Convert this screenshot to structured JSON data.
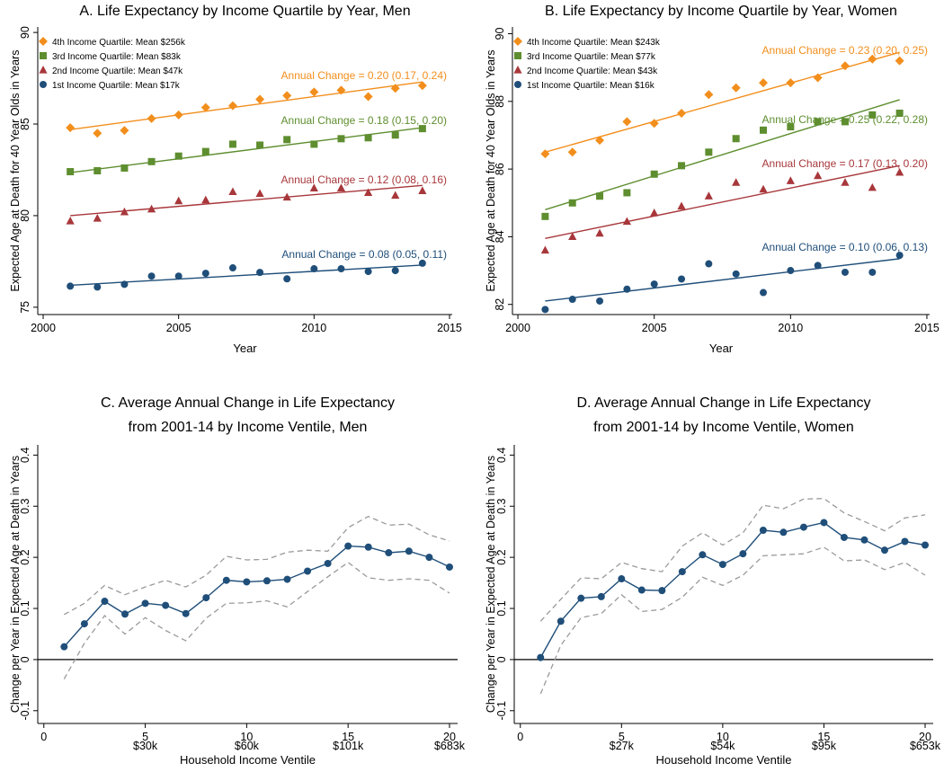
{
  "colors": {
    "q4": "#F28E1C",
    "q3": "#5E8E2F",
    "q2": "#A8373B",
    "q1": "#1F4E79",
    "ci": "#9a9a9a",
    "axis": "#000000"
  },
  "chart_data": [
    {
      "id": "A",
      "type": "scatter",
      "title": "A. Life Expectancy by Income Quartile by Year, Men",
      "xlabel": "Year",
      "ylabel": "Expected Age at Death for 40 Year Olds in Years",
      "xlim": [
        1999.8,
        2015.1
      ],
      "ylim": [
        74.6,
        90.3
      ],
      "xticks": [
        2000,
        2005,
        2010,
        2015
      ],
      "xtick_labels": [
        "2000",
        "2005",
        "2010",
        "2015"
      ],
      "yticks": [
        75,
        80,
        85,
        90
      ],
      "ytick_labels": [
        "75",
        "80",
        "85",
        "90"
      ],
      "legend_position": "top-left",
      "x": [
        2001,
        2002,
        2003,
        2004,
        2005,
        2006,
        2007,
        2008,
        2009,
        2010,
        2011,
        2012,
        2013,
        2014
      ],
      "series": [
        {
          "key": "q4",
          "marker": "diamond",
          "name": "4th Income Quartile: Mean $256k",
          "values": [
            84.8,
            84.5,
            84.65,
            85.3,
            85.5,
            85.9,
            86.0,
            86.35,
            86.55,
            86.75,
            86.85,
            86.5,
            86.95,
            87.1
          ],
          "fit": [
            84.7,
            87.3
          ],
          "annotation": "Annual Change = 0.20 (0.17, 0.24)"
        },
        {
          "key": "q3",
          "marker": "square",
          "name": "3rd Income Quartile: Mean $83k",
          "values": [
            82.4,
            82.45,
            82.6,
            82.95,
            83.25,
            83.5,
            83.9,
            83.85,
            84.15,
            83.9,
            84.2,
            84.25,
            84.4,
            84.75
          ],
          "fit": [
            82.35,
            84.8
          ],
          "annotation": "Annual Change = 0.18 (0.15, 0.20)"
        },
        {
          "key": "q2",
          "marker": "triangle",
          "name": "2nd Income Quartile: Mean $47k",
          "values": [
            79.7,
            79.85,
            80.2,
            80.35,
            80.8,
            80.85,
            81.3,
            81.2,
            81.0,
            81.5,
            81.5,
            81.25,
            81.1,
            81.35
          ],
          "fit": [
            80.0,
            81.65
          ],
          "annotation": "Annual Change = 0.12 (0.08, 0.16)"
        },
        {
          "key": "q1",
          "marker": "circle",
          "name": "1st Income Quartile: Mean $17k",
          "values": [
            76.15,
            76.1,
            76.25,
            76.7,
            76.7,
            76.85,
            77.15,
            76.9,
            76.55,
            77.1,
            77.1,
            76.95,
            77.0,
            77.4
          ],
          "fit": [
            76.2,
            77.3
          ],
          "annotation": "Annual Change = 0.08 (0.05, 0.11)"
        }
      ]
    },
    {
      "id": "B",
      "type": "scatter",
      "title": "B. Life Expectancy by Income Quartile by Year, Women",
      "xlabel": "Year",
      "ylabel": "Expected Age at Death for 40 Year Olds in Years",
      "xlim": [
        1999.8,
        2015.1
      ],
      "ylim": [
        81.7,
        90.2
      ],
      "xticks": [
        2000,
        2005,
        2010,
        2015
      ],
      "xtick_labels": [
        "2000",
        "2005",
        "2010",
        "2015"
      ],
      "yticks": [
        82,
        84,
        86,
        88,
        90
      ],
      "ytick_labels": [
        "82",
        "84",
        "86",
        "88",
        "90"
      ],
      "legend_position": "top-left",
      "x": [
        2001,
        2002,
        2003,
        2004,
        2005,
        2006,
        2007,
        2008,
        2009,
        2010,
        2011,
        2012,
        2013,
        2014
      ],
      "series": [
        {
          "key": "q4",
          "marker": "diamond",
          "name": "4th Income Quartile: Mean $243k",
          "values": [
            86.45,
            86.5,
            86.85,
            87.4,
            87.35,
            87.65,
            88.2,
            88.4,
            88.55,
            88.55,
            88.7,
            89.05,
            89.25,
            89.2
          ],
          "fit": [
            86.5,
            89.45
          ],
          "annotation": "Annual Change = 0.23 (0.20, 0.25)"
        },
        {
          "key": "q3",
          "marker": "square",
          "name": "3rd Income Quartile: Mean $77k",
          "values": [
            84.6,
            85.0,
            85.2,
            85.3,
            85.85,
            86.1,
            86.5,
            86.9,
            87.15,
            87.25,
            87.4,
            87.4,
            87.6,
            87.65
          ],
          "fit": [
            84.8,
            88.05
          ],
          "annotation": "Annual Change = 0.25 (0.22, 0.28)"
        },
        {
          "key": "q2",
          "marker": "triangle",
          "name": "2nd Income Quartile: Mean $43k",
          "values": [
            83.6,
            84.0,
            84.1,
            84.45,
            84.7,
            84.9,
            85.2,
            85.6,
            85.4,
            85.65,
            85.8,
            85.6,
            85.45,
            85.9
          ],
          "fit": [
            83.95,
            86.1
          ],
          "annotation": "Annual Change = 0.17 (0.13, 0.20)"
        },
        {
          "key": "q1",
          "marker": "circle",
          "name": "1st Income Quartile: Mean $16k",
          "values": [
            81.85,
            82.15,
            82.1,
            82.45,
            82.6,
            82.75,
            83.2,
            82.9,
            82.35,
            83.0,
            83.15,
            82.95,
            82.95,
            83.45
          ],
          "fit": [
            82.1,
            83.35
          ],
          "annotation": "Annual Change = 0.10 (0.06, 0.13)"
        }
      ]
    },
    {
      "id": "C",
      "type": "line",
      "title_lines": [
        "C. Average Annual Change in Life Expectancy",
        "from 2001-14 by Income Ventile, Men"
      ],
      "xlabel": "Household Income Ventile",
      "ylabel": "Change per Year in Expected Age at Death in Years",
      "xlim": [
        -0.3,
        20.4
      ],
      "ylim": [
        -0.125,
        0.42
      ],
      "xticks": [
        0,
        5,
        10,
        15,
        20
      ],
      "xtick_labels": [
        "0",
        "5",
        "10",
        "15",
        "20"
      ],
      "xticks_secondary": [
        5,
        10,
        15,
        20
      ],
      "xtick_secondary_labels": [
        "$30k",
        "$60k",
        "$101k",
        "$683k"
      ],
      "yticks": [
        -0.1,
        0,
        0.1,
        0.2,
        0.3,
        0.4
      ],
      "ytick_labels": [
        "-0.1",
        "0",
        "0.1",
        "0.2",
        "0.3",
        "0.4"
      ],
      "zero_line": 0,
      "x": [
        1,
        2,
        3,
        4,
        5,
        6,
        7,
        8,
        9,
        10,
        11,
        12,
        13,
        14,
        15,
        16,
        17,
        18,
        19,
        20
      ],
      "series": [
        {
          "name": "estimate",
          "values": [
            0.025,
            0.07,
            0.114,
            0.089,
            0.11,
            0.106,
            0.09,
            0.121,
            0.155,
            0.152,
            0.154,
            0.157,
            0.173,
            0.188,
            0.222,
            0.22,
            0.209,
            0.212,
            0.2,
            0.181
          ]
        },
        {
          "name": "upper_ci",
          "values": [
            0.088,
            0.11,
            0.145,
            0.127,
            0.142,
            0.155,
            0.142,
            0.165,
            0.202,
            0.195,
            0.196,
            0.21,
            0.214,
            0.212,
            0.258,
            0.28,
            0.263,
            0.265,
            0.244,
            0.232
          ]
        },
        {
          "name": "lower_ci",
          "values": [
            -0.038,
            0.032,
            0.086,
            0.05,
            0.082,
            0.057,
            0.037,
            0.081,
            0.11,
            0.111,
            0.115,
            0.103,
            0.133,
            0.162,
            0.19,
            0.16,
            0.155,
            0.158,
            0.155,
            0.13
          ]
        }
      ]
    },
    {
      "id": "D",
      "type": "line",
      "title_lines": [
        "D. Average Annual Change in Life Expectancy",
        "from 2001-14 by Income Ventile, Women"
      ],
      "xlabel": "Household Income Ventile",
      "ylabel": "Change per Year in Expected Age at Death in Years",
      "xlim": [
        -0.3,
        20.4
      ],
      "ylim": [
        -0.125,
        0.42
      ],
      "xticks": [
        0,
        5,
        10,
        15,
        20
      ],
      "xtick_labels": [
        "0",
        "5",
        "10",
        "15",
        "20"
      ],
      "xticks_secondary": [
        5,
        10,
        15,
        20
      ],
      "xtick_secondary_labels": [
        "$27k",
        "$54k",
        "$95k",
        "$653k"
      ],
      "yticks": [
        -0.1,
        0,
        0.1,
        0.2,
        0.3,
        0.4
      ],
      "ytick_labels": [
        "-0.1",
        "0",
        "0.1",
        "0.2",
        "0.3",
        "0.4"
      ],
      "zero_line": 0,
      "x": [
        1,
        2,
        3,
        4,
        5,
        6,
        7,
        8,
        9,
        10,
        11,
        12,
        13,
        14,
        15,
        16,
        17,
        18,
        19,
        20
      ],
      "series": [
        {
          "name": "estimate",
          "values": [
            0.004,
            0.075,
            0.12,
            0.123,
            0.158,
            0.136,
            0.135,
            0.172,
            0.205,
            0.186,
            0.207,
            0.253,
            0.249,
            0.259,
            0.268,
            0.239,
            0.234,
            0.214,
            0.231,
            0.224
          ]
        },
        {
          "name": "upper_ci",
          "values": [
            0.075,
            0.118,
            0.16,
            0.158,
            0.19,
            0.178,
            0.172,
            0.222,
            0.248,
            0.224,
            0.248,
            0.302,
            0.295,
            0.314,
            0.315,
            0.287,
            0.27,
            0.252,
            0.277,
            0.283
          ]
        },
        {
          "name": "lower_ci",
          "values": [
            -0.067,
            0.028,
            0.082,
            0.09,
            0.127,
            0.094,
            0.098,
            0.122,
            0.161,
            0.145,
            0.165,
            0.203,
            0.205,
            0.207,
            0.22,
            0.193,
            0.195,
            0.176,
            0.19,
            0.165
          ]
        }
      ]
    }
  ]
}
